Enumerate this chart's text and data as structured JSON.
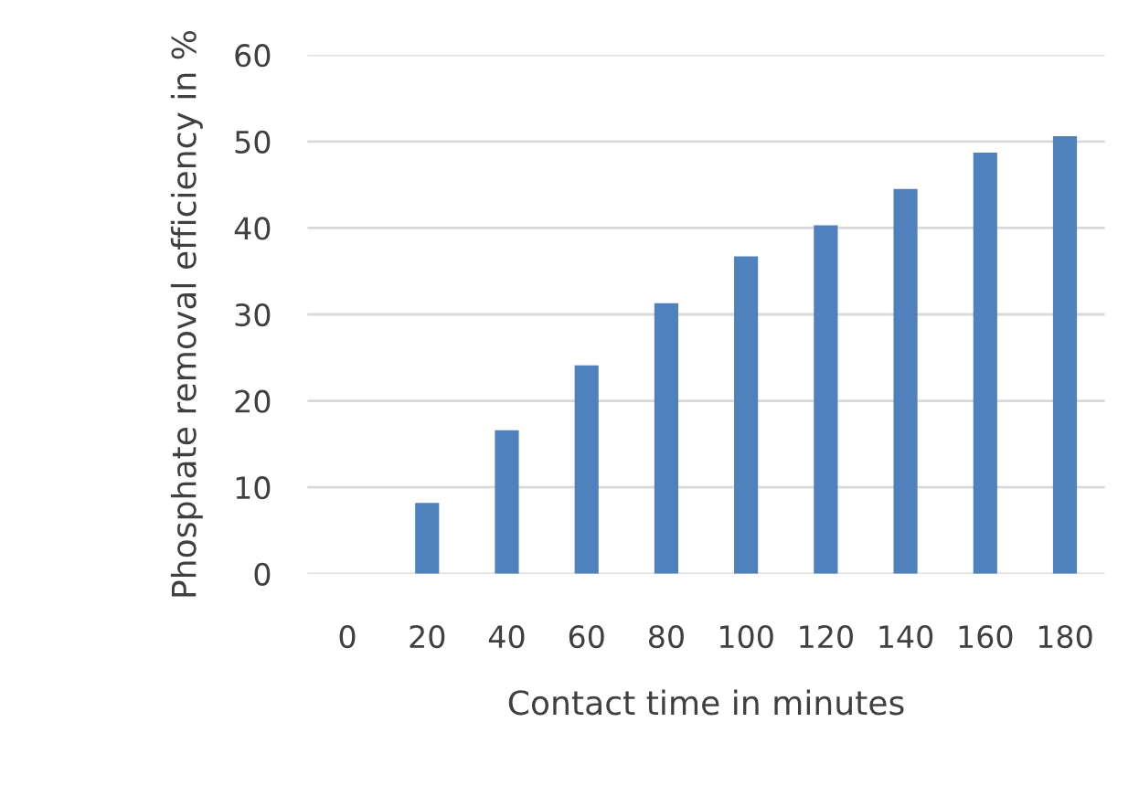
{
  "chart_data": {
    "type": "bar",
    "xlabel": "Contact time in minutes",
    "ylabel": "Phosphate removal efficiency in %",
    "categories": [
      "0",
      "20",
      "40",
      "60",
      "80",
      "100",
      "120",
      "140",
      "160",
      "180"
    ],
    "values": [
      0,
      8.2,
      16.6,
      24.1,
      31.3,
      36.7,
      40.3,
      44.5,
      48.7,
      50.6
    ],
    "color": "#4f81bd",
    "ylim": [
      0,
      60
    ],
    "yticks": [
      0,
      10,
      20,
      30,
      40,
      50,
      60
    ],
    "grid": "y"
  }
}
